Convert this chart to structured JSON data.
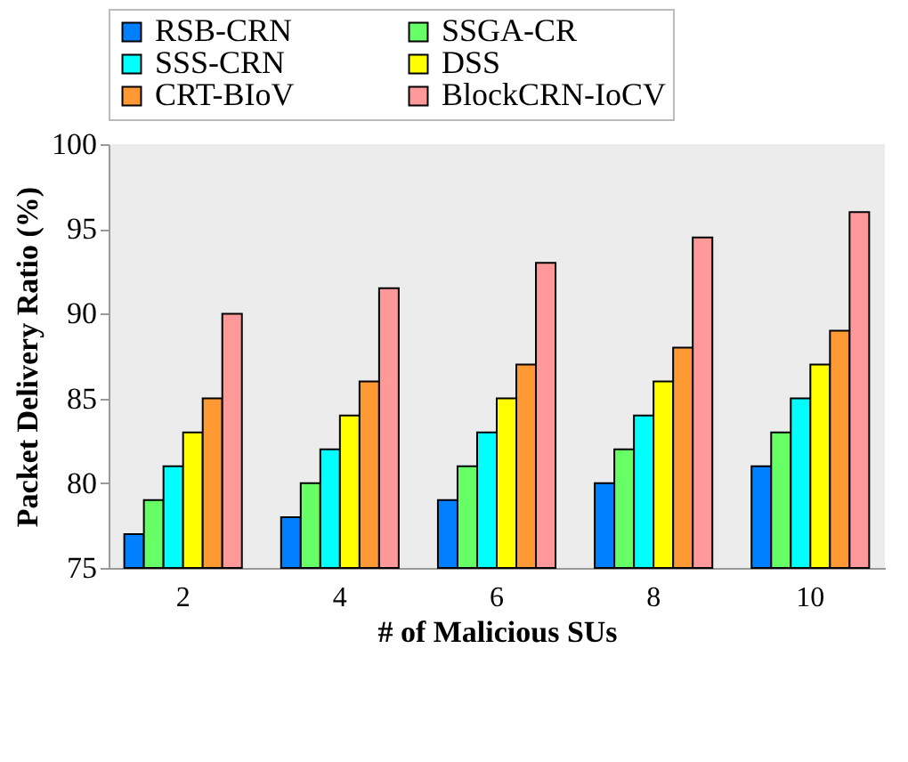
{
  "chart_data": {
    "type": "bar",
    "xlabel": "# of Malicious SUs",
    "ylabel": "Packet Delivery Ratio (%)",
    "categories": [
      "2",
      "4",
      "6",
      "8",
      "10"
    ],
    "series": [
      {
        "name": "RSB-CRN",
        "color": "#0080ff",
        "values": [
          77,
          78,
          79,
          80,
          81
        ]
      },
      {
        "name": "SSGA-CR",
        "color": "#66ff66",
        "values": [
          79,
          80,
          81,
          82,
          83
        ]
      },
      {
        "name": "SSS-CRN",
        "color": "#00ffff",
        "values": [
          81,
          82,
          83,
          84,
          85
        ]
      },
      {
        "name": "DSS",
        "color": "#ffff00",
        "values": [
          83,
          84,
          85,
          86,
          87
        ]
      },
      {
        "name": "CRT-BIoV",
        "color": "#ff9933",
        "values": [
          85,
          86,
          87,
          88,
          89
        ]
      },
      {
        "name": "BlockCRN-IoCV",
        "color": "#ff9999",
        "values": [
          90,
          91.5,
          93,
          94.5,
          96
        ]
      }
    ],
    "ylim": [
      75,
      100
    ],
    "yticks": [
      75,
      80,
      85,
      90,
      95,
      100
    ],
    "grid": false,
    "legend": "top"
  }
}
